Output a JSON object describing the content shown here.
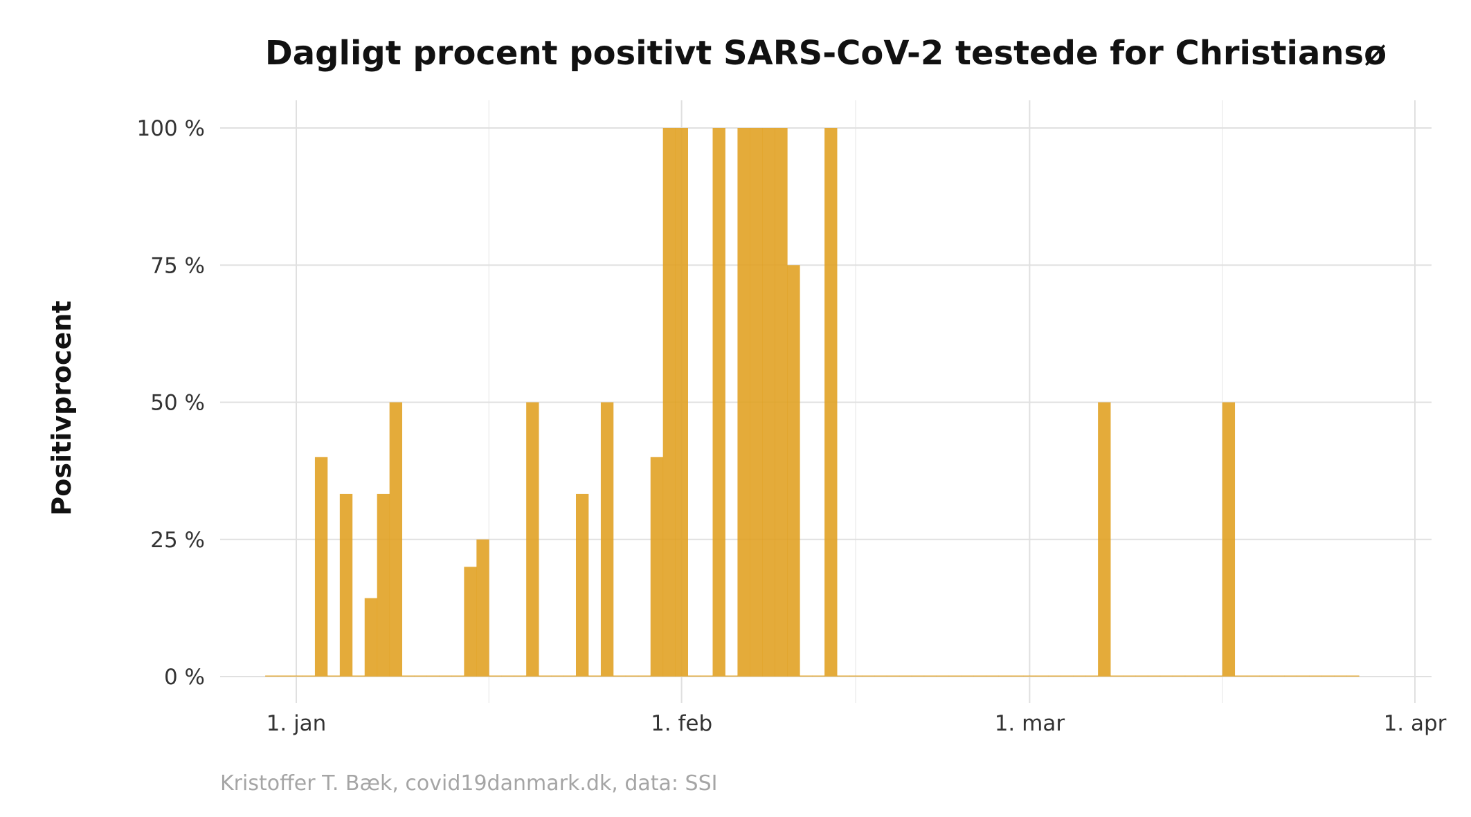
{
  "chart_data": {
    "type": "bar",
    "title": "Dagligt procent positivt SARS-CoV-2 testede for Christiansø",
    "xlabel": "",
    "ylabel": "Positivprocent",
    "caption": "Kristoffer T. Bæk, covid19danmark.dk, data: SSI",
    "bar_color": "#e09f1f",
    "grid": true,
    "x_axis": {
      "type": "date",
      "range": [
        "2020-12-26",
        "2021-04-01"
      ],
      "ticks": [
        {
          "date": "2021-01-01",
          "label": "1. jan"
        },
        {
          "date": "2021-02-01",
          "label": "1. feb"
        },
        {
          "date": "2021-03-01",
          "label": "1. mar"
        },
        {
          "date": "2021-04-01",
          "label": "1. apr"
        }
      ]
    },
    "y_axis": {
      "range": [
        0,
        100
      ],
      "ticks": [
        {
          "value": 0,
          "label": "0 %"
        },
        {
          "value": 25,
          "label": "25 %"
        },
        {
          "value": 50,
          "label": "50 %"
        },
        {
          "value": 75,
          "label": "75 %"
        },
        {
          "value": 100,
          "label": "100 %"
        }
      ]
    },
    "data_range": [
      "2020-12-30",
      "2021-03-27"
    ],
    "points": [
      {
        "date": "2021-01-03",
        "value": 40
      },
      {
        "date": "2021-01-05",
        "value": 33.3
      },
      {
        "date": "2021-01-07",
        "value": 14.3
      },
      {
        "date": "2021-01-08",
        "value": 33.3
      },
      {
        "date": "2021-01-09",
        "value": 50
      },
      {
        "date": "2021-01-15",
        "value": 20
      },
      {
        "date": "2021-01-16",
        "value": 25
      },
      {
        "date": "2021-01-20",
        "value": 50
      },
      {
        "date": "2021-01-24",
        "value": 33.3
      },
      {
        "date": "2021-01-26",
        "value": 50
      },
      {
        "date": "2021-01-30",
        "value": 40
      },
      {
        "date": "2021-01-31",
        "value": 100
      },
      {
        "date": "2021-02-01",
        "value": 100
      },
      {
        "date": "2021-02-04",
        "value": 100
      },
      {
        "date": "2021-02-06",
        "value": 100
      },
      {
        "date": "2021-02-07",
        "value": 100
      },
      {
        "date": "2021-02-08",
        "value": 100
      },
      {
        "date": "2021-02-09",
        "value": 100
      },
      {
        "date": "2021-02-10",
        "value": 75
      },
      {
        "date": "2021-02-13",
        "value": 100
      },
      {
        "date": "2021-03-07",
        "value": 50
      },
      {
        "date": "2021-03-17",
        "value": 50
      }
    ]
  }
}
